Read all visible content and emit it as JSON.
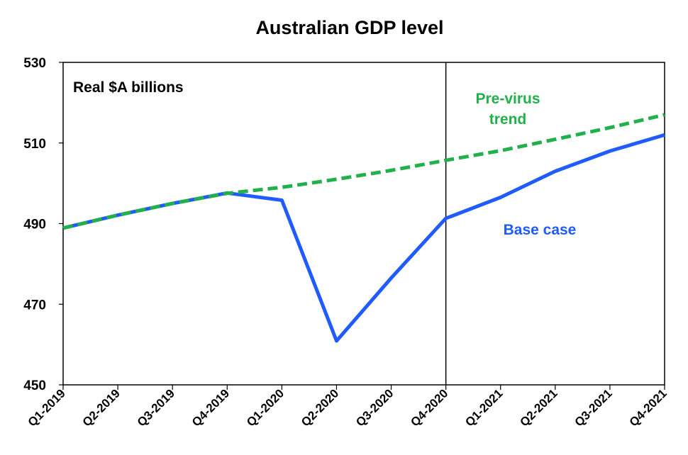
{
  "chart_data": {
    "type": "line",
    "title": "Australian GDP level",
    "annotation": "Real $A billions",
    "xlabel": "",
    "ylabel": "",
    "categories": [
      "Q1-2019",
      "Q2-2019",
      "Q3-2019",
      "Q4-2019",
      "Q1-2020",
      "Q2-2020",
      "Q3-2020",
      "Q4-2020",
      "Q1-2021",
      "Q2-2021",
      "Q3-2021",
      "Q4-2021"
    ],
    "ylim": [
      450,
      530
    ],
    "yticks": [
      450,
      470,
      490,
      510,
      530
    ],
    "divider_after": "Q4-2020",
    "grid": false,
    "series": [
      {
        "name": "Pre-virus trend",
        "label_lines": [
          "Pre-virus",
          "trend"
        ],
        "color": "#22b04a",
        "style": "dashed",
        "values": [
          488.9,
          492.1,
          495.0,
          497.5,
          499.0,
          501.0,
          503.2,
          505.7,
          508.1,
          510.9,
          513.8,
          517.0
        ]
      },
      {
        "name": "Base case",
        "label_lines": [
          "Base case"
        ],
        "color": "#1f5bff",
        "style": "solid",
        "values": [
          488.9,
          492.1,
          495.0,
          497.6,
          495.8,
          460.9,
          476.5,
          491.3,
          496.5,
          503.0,
          508.0,
          512.0
        ]
      }
    ]
  }
}
